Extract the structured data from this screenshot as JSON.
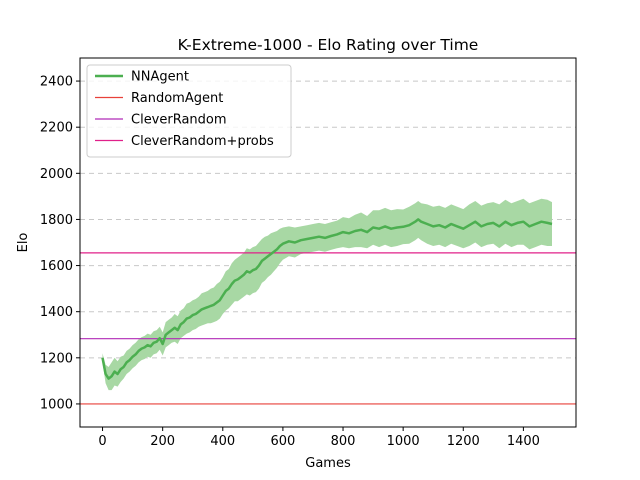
{
  "chart_data": {
    "type": "line",
    "title": "K-Extreme-1000 - Elo Rating over Time",
    "xlabel": "Games",
    "ylabel": "Elo",
    "xlim": [
      -75,
      1575
    ],
    "ylim": [
      900,
      2500
    ],
    "xticks": [
      0,
      200,
      400,
      600,
      800,
      1000,
      1200,
      1400
    ],
    "yticks": [
      1000,
      1200,
      1400,
      1600,
      1800,
      2000,
      2200,
      2400
    ],
    "grid": "horizontal dashed",
    "legend_position": "top-left",
    "series": [
      {
        "name": "NNAgent",
        "color": "#4caf50",
        "band_color": "#a8d8a4",
        "x": [
          0,
          10,
          20,
          30,
          40,
          50,
          60,
          70,
          80,
          90,
          100,
          110,
          120,
          130,
          140,
          150,
          160,
          170,
          180,
          190,
          200,
          210,
          220,
          230,
          240,
          250,
          260,
          270,
          280,
          290,
          300,
          310,
          320,
          330,
          340,
          350,
          360,
          370,
          380,
          390,
          400,
          410,
          420,
          430,
          440,
          450,
          460,
          470,
          480,
          490,
          500,
          510,
          520,
          530,
          540,
          550,
          560,
          570,
          580,
          590,
          600,
          620,
          640,
          660,
          680,
          700,
          720,
          740,
          760,
          780,
          800,
          820,
          840,
          860,
          880,
          900,
          920,
          940,
          960,
          980,
          1000,
          1020,
          1040,
          1050,
          1060,
          1080,
          1100,
          1120,
          1140,
          1160,
          1180,
          1200,
          1220,
          1240,
          1260,
          1280,
          1300,
          1320,
          1340,
          1360,
          1380,
          1400,
          1420,
          1440,
          1460,
          1480,
          1495
        ],
        "y": [
          1200,
          1130,
          1110,
          1120,
          1140,
          1130,
          1150,
          1160,
          1180,
          1190,
          1205,
          1215,
          1230,
          1240,
          1245,
          1255,
          1250,
          1265,
          1270,
          1285,
          1260,
          1300,
          1310,
          1320,
          1330,
          1320,
          1345,
          1355,
          1370,
          1375,
          1385,
          1390,
          1400,
          1410,
          1415,
          1420,
          1425,
          1430,
          1440,
          1450,
          1470,
          1490,
          1500,
          1520,
          1535,
          1540,
          1550,
          1560,
          1575,
          1570,
          1580,
          1585,
          1600,
          1620,
          1630,
          1640,
          1650,
          1660,
          1670,
          1685,
          1695,
          1705,
          1700,
          1710,
          1715,
          1720,
          1725,
          1720,
          1728,
          1735,
          1745,
          1740,
          1750,
          1755,
          1745,
          1765,
          1760,
          1770,
          1760,
          1765,
          1768,
          1775,
          1790,
          1800,
          1790,
          1780,
          1770,
          1775,
          1765,
          1780,
          1770,
          1760,
          1775,
          1790,
          1770,
          1780,
          1785,
          1770,
          1790,
          1775,
          1785,
          1790,
          1770,
          1780,
          1790,
          1785,
          1780
        ],
        "band_halfwidth": [
          20,
          40,
          50,
          60,
          60,
          55,
          55,
          50,
          50,
          50,
          50,
          50,
          50,
          50,
          50,
          50,
          50,
          50,
          50,
          50,
          50,
          55,
          55,
          55,
          60,
          60,
          60,
          60,
          65,
          65,
          65,
          65,
          65,
          70,
          70,
          70,
          75,
          75,
          80,
          80,
          80,
          85,
          85,
          90,
          90,
          95,
          95,
          95,
          100,
          100,
          100,
          100,
          100,
          95,
          95,
          90,
          90,
          85,
          80,
          75,
          70,
          65,
          65,
          60,
          60,
          60,
          60,
          60,
          60,
          60,
          65,
          65,
          70,
          75,
          70,
          75,
          80,
          80,
          80,
          80,
          75,
          80,
          80,
          80,
          80,
          85,
          85,
          85,
          85,
          85,
          85,
          85,
          90,
          90,
          90,
          90,
          90,
          95,
          95,
          95,
          95,
          100,
          100,
          100,
          100,
          100,
          95
        ]
      },
      {
        "name": "RandomAgent",
        "color": "#e8413a",
        "value": 1000
      },
      {
        "name": "CleverRandom",
        "color": "#b12ab6",
        "value": 1283
      },
      {
        "name": "CleverRandom+probs",
        "color": "#e0208a",
        "value": 1655
      }
    ]
  }
}
